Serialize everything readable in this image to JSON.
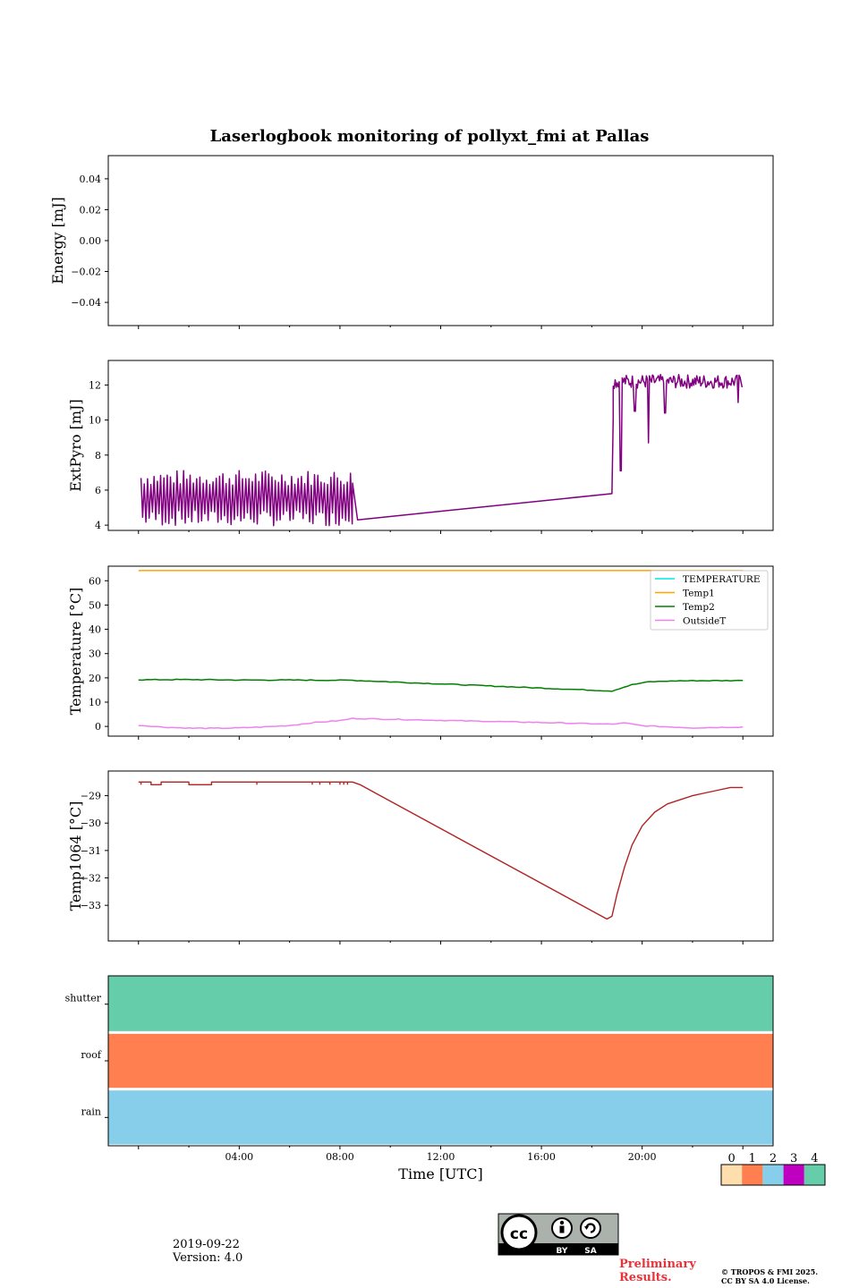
{
  "figure_title": "Laserlogbook monitoring of pollyxt_fmi at Pallas",
  "footer": {
    "date": "2019-09-22",
    "version": "Version: 4.0",
    "preliminary_line1": "Preliminary",
    "preliminary_line2": "Results.",
    "copyright_line1": "© TROPOS & FMI 2025.",
    "copyright_line2": "CC BY SA 4.0 License.",
    "license_badge": {
      "cc": "cc",
      "by": "BY",
      "sa": "SA"
    }
  },
  "chart_data": [
    {
      "id": "energy",
      "type": "line",
      "ylabel": "Energy [mJ]",
      "ylim": [
        -0.055,
        0.055
      ],
      "yticks": [
        -0.04,
        -0.02,
        0.0,
        0.02,
        0.04
      ],
      "ytick_labels": [
        "−0.04",
        "−0.02",
        "0.00",
        "0.02",
        "0.04"
      ],
      "series": []
    },
    {
      "id": "extpyro",
      "type": "line",
      "ylabel": "ExtPyro [mJ]",
      "ylim": [
        3.7,
        13.4
      ],
      "yticks": [
        4,
        6,
        8,
        10,
        12
      ],
      "ytick_labels": [
        "4",
        "6",
        "8",
        "10",
        "12"
      ],
      "series": [
        {
          "name": "ExtPyro",
          "color": "#800080",
          "segments": [
            {
              "kind": "oscillation",
              "x_start": 0.1,
              "x_end": 8.5,
              "low": 4.4,
              "high": 6.7,
              "period_h": 0.13
            },
            {
              "kind": "line",
              "points": [
                [
                  8.5,
                  6.4
                ],
                [
                  8.7,
                  4.3
                ],
                [
                  18.8,
                  5.8
                ],
                [
                  18.85,
                  10.1
                ]
              ]
            },
            {
              "kind": "noisy",
              "x_start": 18.85,
              "x_end": 24.0,
              "base": 12.2,
              "noise": 0.4
            },
            {
              "kind": "dips",
              "points": [
                [
                  19.15,
                  7.1
                ],
                [
                  19.7,
                  10.5
                ],
                [
                  20.25,
                  8.7
                ],
                [
                  20.9,
                  10.4
                ],
                [
                  23.8,
                  11.0
                ]
              ]
            }
          ]
        }
      ]
    },
    {
      "id": "temperature",
      "type": "line",
      "ylabel": "Temperature [°C]",
      "ylim": [
        -4,
        66
      ],
      "yticks": [
        0,
        10,
        20,
        30,
        40,
        50,
        60
      ],
      "ytick_labels": [
        "0",
        "10",
        "20",
        "30",
        "40",
        "50",
        "60"
      ],
      "legend_position": "upper-right",
      "series": [
        {
          "name": "TEMPERATURE",
          "color": "#00e5ee",
          "points": []
        },
        {
          "name": "Temp1",
          "color": "#ffa500",
          "points": [
            [
              0,
              64.2
            ],
            [
              24,
              64.2
            ]
          ]
        },
        {
          "name": "Temp2",
          "color": "#008000",
          "points": [
            [
              0,
              19.2
            ],
            [
              2,
              19.3
            ],
            [
              4,
              19.1
            ],
            [
              6,
              19.1
            ],
            [
              8.5,
              19.0
            ],
            [
              18.8,
              14.6
            ],
            [
              19.1,
              15.6
            ],
            [
              19.6,
              17.2
            ],
            [
              20.3,
              18.4
            ],
            [
              21.5,
              18.8
            ],
            [
              24,
              18.9
            ]
          ]
        },
        {
          "name": "OutsideT",
          "color": "#ee82ee",
          "points": [
            [
              0,
              0.5
            ],
            [
              1,
              -0.3
            ],
            [
              2,
              -0.7
            ],
            [
              3,
              -0.8
            ],
            [
              4,
              -0.6
            ],
            [
              5,
              -0.2
            ],
            [
              6,
              0.4
            ],
            [
              7,
              1.6
            ],
            [
              8,
              2.4
            ],
            [
              8.5,
              3.3
            ],
            [
              12,
              2.5
            ],
            [
              16,
              1.6
            ],
            [
              18.8,
              0.9
            ],
            [
              19.3,
              1.4
            ],
            [
              20,
              0.3
            ],
            [
              22,
              -0.6
            ],
            [
              24,
              -0.2
            ]
          ]
        }
      ]
    },
    {
      "id": "temp1064",
      "type": "line",
      "ylabel": "Temp1064 [°C]",
      "ylim": [
        -34.3,
        -28.1
      ],
      "yticks": [
        -33,
        -32,
        -31,
        -30,
        -29
      ],
      "ytick_labels": [
        "−33",
        "−32",
        "−31",
        "−30",
        "−29"
      ],
      "series": [
        {
          "name": "Temp1064",
          "color": "#b22222",
          "points": [
            [
              0,
              -28.5
            ],
            [
              0.5,
              -28.5
            ],
            [
              0.5,
              -28.6
            ],
            [
              0.9,
              -28.6
            ],
            [
              0.9,
              -28.5
            ],
            [
              2.0,
              -28.5
            ],
            [
              2.0,
              -28.6
            ],
            [
              2.9,
              -28.6
            ],
            [
              2.9,
              -28.5
            ],
            [
              8.5,
              -28.5
            ],
            [
              8.8,
              -28.6
            ],
            [
              18.6,
              -33.5
            ],
            [
              18.8,
              -33.4
            ],
            [
              19.0,
              -32.6
            ],
            [
              19.3,
              -31.6
            ],
            [
              19.6,
              -30.8
            ],
            [
              20.0,
              -30.1
            ],
            [
              20.5,
              -29.6
            ],
            [
              21.0,
              -29.3
            ],
            [
              22.0,
              -29.0
            ],
            [
              22.5,
              -28.9
            ],
            [
              23.0,
              -28.8
            ],
            [
              23.5,
              -28.7
            ],
            [
              24.0,
              -28.7
            ]
          ]
        }
      ]
    },
    {
      "id": "flags",
      "type": "heatmap",
      "rows": [
        "shutter",
        "roof",
        "rain"
      ],
      "row_values": [
        4,
        1,
        2
      ],
      "xlabel": "Time [UTC]",
      "xlim": [
        -1.2,
        25.2
      ],
      "xticks": [
        4,
        8,
        12,
        16,
        20
      ],
      "xtick_labels": [
        "04:00",
        "08:00",
        "12:00",
        "16:00",
        "20:00"
      ],
      "colorbar": {
        "labels": [
          "0",
          "1",
          "2",
          "3",
          "4"
        ],
        "colors": [
          "#ffdead",
          "#ff7f50",
          "#87ceeb",
          "#c000c0",
          "#66cdaa"
        ]
      }
    }
  ]
}
